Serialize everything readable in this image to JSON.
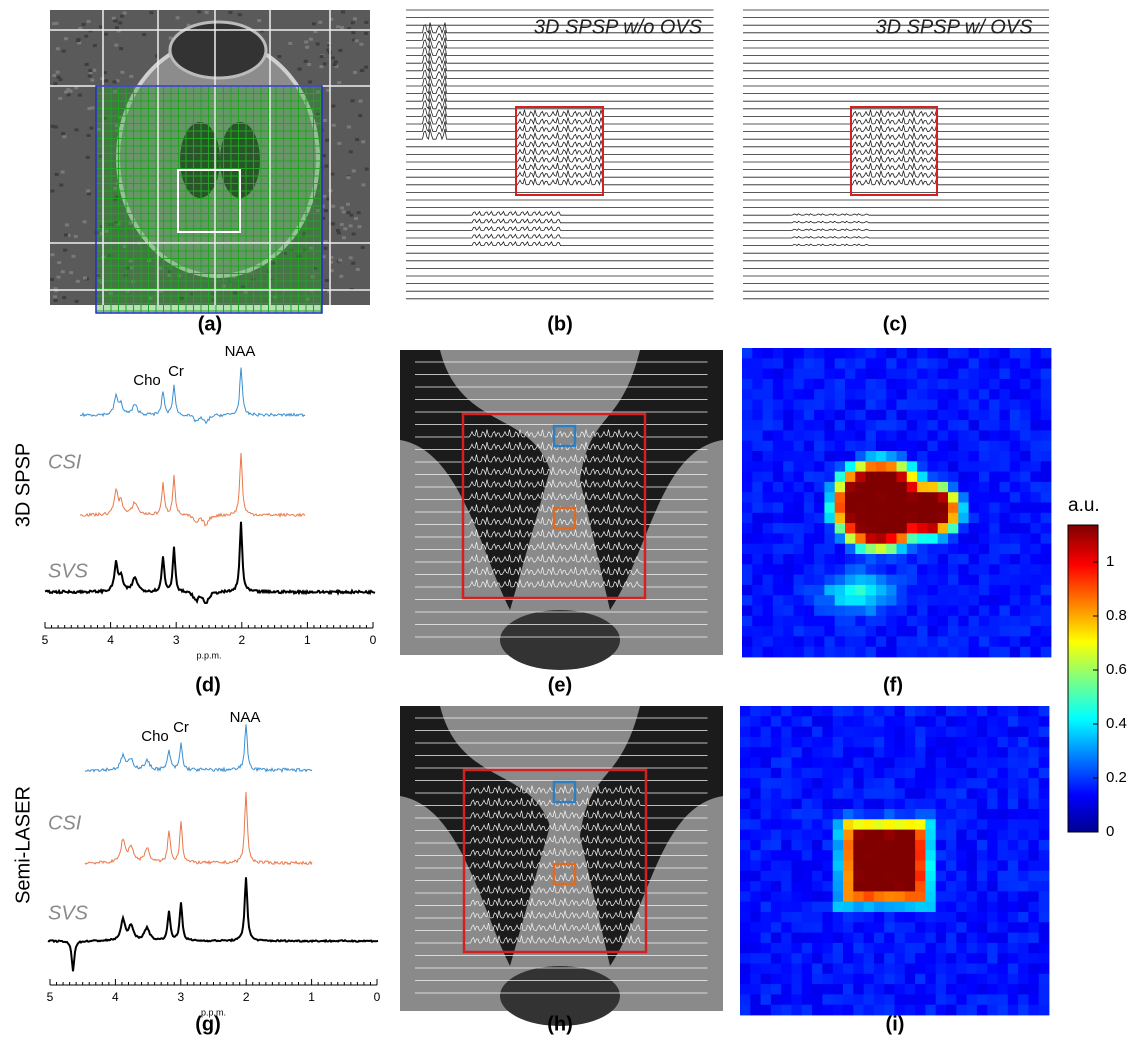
{
  "panels": {
    "a": {
      "label": "(a)"
    },
    "b": {
      "label": "(b)",
      "title": "3D SPSP w/o OVS"
    },
    "c": {
      "label": "(c)",
      "title": "3D SPSP w/ OVS"
    },
    "d": {
      "label": "(d)",
      "row_label": "3D SPSP",
      "peaks": [
        "Cho",
        "Cr",
        "NAA"
      ],
      "traces": [
        "CSI",
        "SVS"
      ],
      "axis": {
        "ticks": [
          5,
          4,
          3,
          2,
          1,
          0
        ],
        "label": "p.p.m."
      }
    },
    "e": {
      "label": "(e)"
    },
    "f": {
      "label": "(f)"
    },
    "g": {
      "label": "(g)",
      "row_label": "Semi-LASER",
      "peaks": [
        "Cho",
        "Cr",
        "NAA"
      ],
      "traces": [
        "CSI",
        "SVS"
      ],
      "axis": {
        "ticks": [
          5,
          4,
          3,
          2,
          1,
          0
        ],
        "label": "p.p.m."
      }
    },
    "h": {
      "label": "(h)"
    },
    "i": {
      "label": "(i)"
    }
  },
  "colorbar": {
    "label": "a.u.",
    "ticks": [
      0,
      0.2,
      0.4,
      0.6,
      0.8,
      1
    ]
  }
}
